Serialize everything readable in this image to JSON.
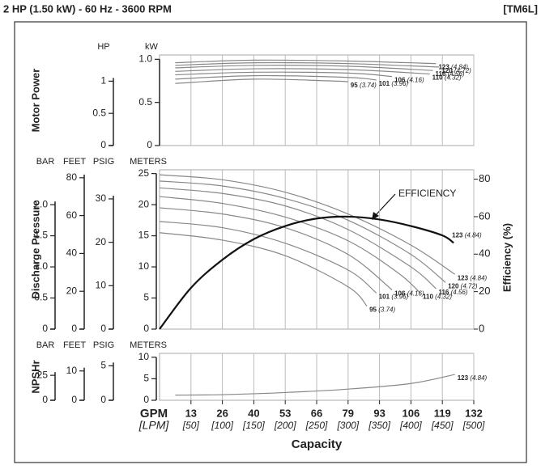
{
  "header": {
    "title": "2 HP (1.50 kW) - 60 Hz - 3600 RPM",
    "code": "[TM6L]"
  },
  "chart_data": [
    {
      "type": "line",
      "ylabel": "Motor Power",
      "yunit": "kW",
      "xlim": [
        0,
        500
      ],
      "ylim": [
        0,
        1.05
      ],
      "yticks": [
        0,
        0.5,
        {
          "value": 1,
          "label": "1.0"
        }
      ],
      "axes": [
        {
          "label": "HP",
          "lim": [
            0,
            1.407
          ],
          "ticks": [
            0,
            0.5,
            1
          ]
        }
      ],
      "series": [
        {
          "name": "123",
          "trim": "(4.84)",
          "color": "#888888",
          "x": [
            25,
            150,
            300,
            440
          ],
          "values": [
            0.96,
            0.99,
            0.98,
            0.95
          ]
        },
        {
          "name": "120",
          "trim": "(4.72)",
          "color": "#888888",
          "x": [
            25,
            150,
            300,
            445
          ],
          "values": [
            0.93,
            0.96,
            0.95,
            0.91
          ]
        },
        {
          "name": "116",
          "trim": "(4.56)",
          "color": "#888888",
          "x": [
            25,
            150,
            300,
            435
          ],
          "values": [
            0.9,
            0.93,
            0.92,
            0.87
          ]
        },
        {
          "name": "110",
          "trim": "(4.32)",
          "color": "#888888",
          "x": [
            25,
            150,
            300,
            430
          ],
          "values": [
            0.86,
            0.89,
            0.88,
            0.83
          ]
        },
        {
          "name": "106",
          "trim": "(4.16)",
          "color": "#888888",
          "x": [
            25,
            150,
            300,
            370
          ],
          "values": [
            0.82,
            0.85,
            0.84,
            0.8
          ]
        },
        {
          "name": "101",
          "trim": "(3.96)",
          "color": "#888888",
          "x": [
            25,
            150,
            300,
            345
          ],
          "values": [
            0.77,
            0.81,
            0.79,
            0.76
          ]
        },
        {
          "name": "95",
          "trim": "(3.74)",
          "color": "#888888",
          "x": [
            25,
            150,
            270,
            300
          ],
          "values": [
            0.72,
            0.77,
            0.75,
            0.74
          ]
        }
      ]
    },
    {
      "type": "line",
      "ylabel": "Discharge Pressure",
      "yunit": "METERS",
      "xlim": [
        0,
        500
      ],
      "ylim": [
        0,
        25.6
      ],
      "yticks": [
        0,
        5,
        10,
        15,
        20,
        25
      ],
      "y2label": "Efficiency (%)",
      "y2lim": [
        0,
        85
      ],
      "y2ticks": [
        0,
        20,
        40,
        60,
        80
      ],
      "axes": [
        {
          "label": "BAR",
          "lim": [
            0,
            2.56
          ],
          "ticks": [
            0,
            0.5,
            {
              "value": 1,
              "label": "1.0"
            },
            1.5,
            {
              "value": 2,
              "label": "2.0"
            }
          ]
        },
        {
          "label": "FEET",
          "lim": [
            0,
            84.2
          ],
          "ticks": [
            0,
            20,
            40,
            60,
            80
          ]
        },
        {
          "label": "PSIG",
          "lim": [
            0,
            36.7
          ],
          "ticks": [
            0,
            10,
            20,
            30
          ]
        }
      ],
      "series": [
        {
          "name": "123",
          "trim": "(4.84)",
          "color": "#888888",
          "x": [
            0,
            100,
            200,
            300,
            400,
            470
          ],
          "values": [
            24.8,
            24,
            22,
            18.5,
            13.5,
            8.8
          ]
        },
        {
          "name": "120",
          "trim": "(4.72)",
          "color": "#888888",
          "x": [
            0,
            100,
            200,
            300,
            400,
            455
          ],
          "values": [
            23.8,
            23,
            21,
            17.5,
            12,
            7.5
          ]
        },
        {
          "name": "116",
          "trim": "(4.56)",
          "color": "#888888",
          "x": [
            0,
            100,
            200,
            300,
            400,
            440
          ],
          "values": [
            22.7,
            21.8,
            19.8,
            16,
            10,
            6.5
          ]
        },
        {
          "name": "110",
          "trim": "(4.32)",
          "color": "#888888",
          "x": [
            0,
            100,
            200,
            300,
            380,
            415
          ],
          "values": [
            21.3,
            20.2,
            18,
            14.2,
            9,
            5.8
          ]
        },
        {
          "name": "106",
          "trim": "(4.16)",
          "color": "#888888",
          "x": [
            0,
            100,
            200,
            300,
            370
          ],
          "values": [
            19.5,
            18.5,
            16.3,
            12,
            6.3
          ]
        },
        {
          "name": "101",
          "trim": "(3.96)",
          "color": "#888888",
          "x": [
            0,
            100,
            200,
            300,
            345
          ],
          "values": [
            17.3,
            16.3,
            13.8,
            9.5,
            5.8
          ]
        },
        {
          "name": "95",
          "trim": "(3.74)",
          "color": "#888888",
          "x": [
            0,
            100,
            200,
            300,
            330
          ],
          "values": [
            15.5,
            14.3,
            11.8,
            6.8,
            3.7
          ]
        },
        {
          "name": "EFFICIENCY",
          "axis": "y2",
          "color": "#111111",
          "end_name": "123",
          "end_trim": "(4.84)",
          "x": [
            0,
            50,
            100,
            150,
            200,
            250,
            300,
            350,
            400,
            450,
            468
          ],
          "values": [
            0,
            22,
            37,
            48,
            55,
            59,
            60,
            58.5,
            55,
            50,
            46
          ]
        }
      ]
    },
    {
      "type": "line",
      "ylabel": "NPSHr",
      "yunit": "METERS",
      "xlim": [
        0,
        500
      ],
      "ylim": [
        0,
        10.9
      ],
      "yticks": [
        0,
        5,
        10
      ],
      "axes": [
        {
          "label": "BAR",
          "lim": [
            0,
            0.47
          ],
          "ticks": [
            0,
            {
              "value": 0.25,
              "label": ".25"
            }
          ]
        },
        {
          "label": "FEET",
          "lim": [
            0,
            16
          ],
          "ticks": [
            0,
            10
          ]
        },
        {
          "label": "PSIG",
          "lim": [
            0,
            6.8
          ],
          "ticks": [
            0,
            5
          ]
        }
      ],
      "xlabel": "Capacity",
      "xunit": "GPM",
      "x2unit": "[LPM]",
      "xticks": [
        {
          "value": 50,
          "label": "13"
        },
        {
          "value": 100,
          "label": "26"
        },
        {
          "value": 150,
          "label": "40"
        },
        {
          "value": 200,
          "label": "53"
        },
        {
          "value": 250,
          "label": "66"
        },
        {
          "value": 300,
          "label": "79"
        },
        {
          "value": 350,
          "label": "93"
        },
        {
          "value": 400,
          "label": "106"
        },
        {
          "value": 450,
          "label": "119"
        },
        {
          "value": 500,
          "label": "132"
        }
      ],
      "x2ticks": [
        {
          "value": 50,
          "label": "[50]"
        },
        {
          "value": 100,
          "label": "[100]"
        },
        {
          "value": 150,
          "label": "[150]"
        },
        {
          "value": 200,
          "label": "[200]"
        },
        {
          "value": 250,
          "label": "[250]"
        },
        {
          "value": 300,
          "label": "[300]"
        },
        {
          "value": 350,
          "label": "[350]"
        },
        {
          "value": 400,
          "label": "[400]"
        },
        {
          "value": 450,
          "label": "[450]"
        },
        {
          "value": 500,
          "label": "[500]"
        }
      ],
      "series": [
        {
          "name": "123",
          "trim": "(4.84)",
          "color": "#888888",
          "x": [
            25,
            100,
            200,
            300,
            400,
            470
          ],
          "values": [
            1.2,
            1.3,
            1.8,
            2.6,
            3.9,
            6
          ]
        }
      ]
    }
  ]
}
